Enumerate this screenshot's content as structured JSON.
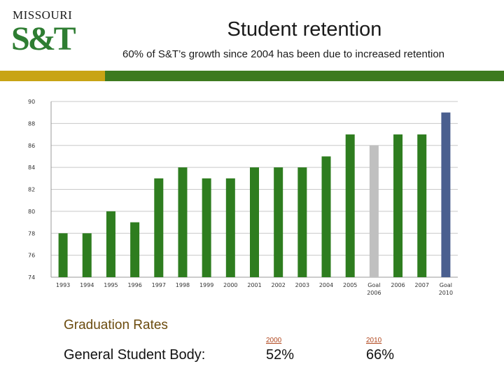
{
  "logo": {
    "top_text": "MISSOURI",
    "main_text": "S&T"
  },
  "header": {
    "title": "Student retention",
    "subtitle": "60% of S&T’s growth since 2004 has been due to increased retention"
  },
  "colors": {
    "accent_yellow": "#c8a415",
    "accent_green": "#3d7a1f",
    "bar_actual": "#2e7d1f",
    "bar_goal_2006": "#c0c0c0",
    "bar_goal_2010": "#4a5f8f"
  },
  "chart_data": {
    "type": "bar",
    "categories": [
      "1993",
      "1994",
      "1995",
      "1996",
      "1997",
      "1998",
      "1999",
      "2000",
      "2001",
      "2002",
      "2003",
      "2004",
      "2005",
      "Goal 2006",
      "2006",
      "2007",
      "Goal 2010"
    ],
    "values": [
      78,
      78,
      80,
      79,
      83,
      84,
      83,
      83,
      84,
      84,
      84,
      85,
      87,
      86,
      87,
      87,
      89
    ],
    "ylim": [
      74,
      90
    ],
    "yticks": [
      74,
      76,
      78,
      80,
      82,
      84,
      86,
      88,
      90
    ],
    "grid": true,
    "legend": "none"
  },
  "graduation": {
    "title": "Graduation Rates",
    "label": "General Student Body:",
    "columns": [
      {
        "year": "2000",
        "value": "52%"
      },
      {
        "year": "2010",
        "value": "66%"
      }
    ]
  }
}
